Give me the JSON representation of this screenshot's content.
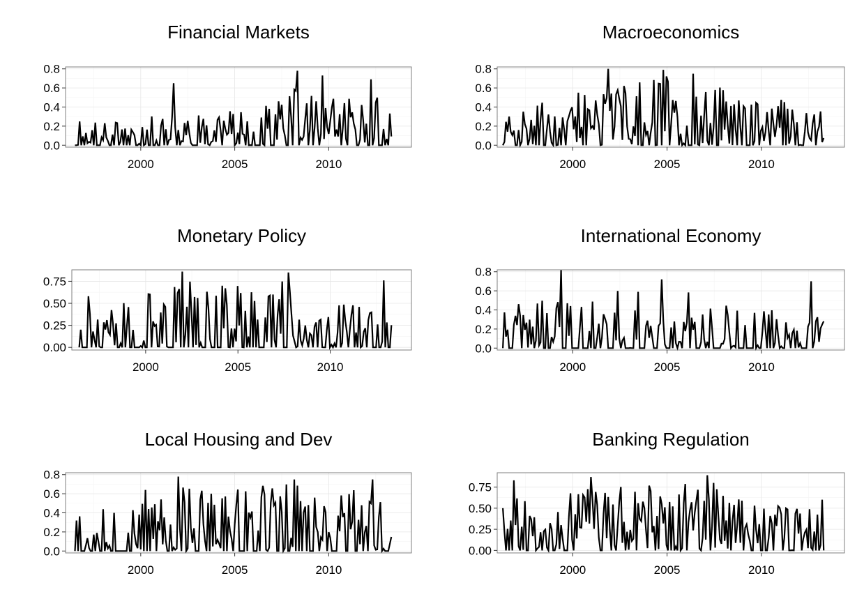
{
  "chart_data": [
    {
      "type": "line",
      "title": "Financial Markets",
      "xlabel": "",
      "ylabel": "",
      "xlim": [
        1996.0,
        2014.4
      ],
      "ylim": [
        -0.02,
        0.82
      ],
      "x_ticks": [
        2000,
        2005,
        2010
      ],
      "x_tick_labels": [
        "2000",
        "2005",
        "2010"
      ],
      "y_ticks": [
        0.0,
        0.2,
        0.4,
        0.6,
        0.8
      ],
      "y_tick_labels": [
        "0.0",
        "0.2",
        "0.4",
        "0.6",
        "0.8"
      ],
      "grid": true,
      "x_start": 1996.5,
      "x_end": 2013.3,
      "seed": 11,
      "p_zero": 0.35,
      "levels": [
        {
          "x": 1996.5,
          "v": 0.28
        },
        {
          "x": 2000.0,
          "v": 0.3
        },
        {
          "x": 2003.0,
          "v": 0.33
        },
        {
          "x": 2006.5,
          "v": 0.4
        },
        {
          "x": 2008.3,
          "v": 0.6
        },
        {
          "x": 2010.0,
          "v": 0.6
        },
        {
          "x": 2011.5,
          "v": 0.45
        },
        {
          "x": 2013.3,
          "v": 0.55
        }
      ],
      "series": [
        {
          "values": [
            {
              "x": 2001.75,
              "y": 0.65
            },
            {
              "x": 2008.3,
              "y": 0.78
            },
            {
              "x": 2009.7,
              "y": 0.73
            },
            {
              "x": 2012.25,
              "y": 0.69
            }
          ]
        }
      ]
    },
    {
      "type": "line",
      "title": "Macroeconomics",
      "xlabel": "",
      "ylabel": "",
      "xlim": [
        1996.0,
        2014.4
      ],
      "ylim": [
        -0.02,
        0.82
      ],
      "x_ticks": [
        2000,
        2005,
        2010
      ],
      "x_tick_labels": [
        "2000",
        "2005",
        "2010"
      ],
      "y_ticks": [
        0.0,
        0.2,
        0.4,
        0.6,
        0.8
      ],
      "y_tick_labels": [
        "0.0",
        "0.2",
        "0.4",
        "0.6",
        "0.8"
      ],
      "grid": true,
      "x_start": 1996.3,
      "x_end": 2013.3,
      "seed": 23,
      "p_zero": 0.25,
      "levels": [
        {
          "x": 1996.3,
          "v": 0.3
        },
        {
          "x": 1999.0,
          "v": 0.5
        },
        {
          "x": 2001.5,
          "v": 0.6
        },
        {
          "x": 2004.5,
          "v": 0.78
        },
        {
          "x": 2007.0,
          "v": 0.65
        },
        {
          "x": 2010.0,
          "v": 0.5
        },
        {
          "x": 2013.3,
          "v": 0.5
        }
      ],
      "series": [
        {
          "values": [
            {
              "x": 1996.6,
              "y": 0.3
            },
            {
              "x": 2001.9,
              "y": 0.8
            },
            {
              "x": 2004.8,
              "y": 0.79
            },
            {
              "x": 2006.4,
              "y": 0.75
            }
          ]
        }
      ]
    },
    {
      "type": "line",
      "title": "Monetary Policy",
      "xlabel": "",
      "ylabel": "",
      "xlim": [
        1996.0,
        2014.4
      ],
      "ylim": [
        -0.03,
        0.88
      ],
      "x_ticks": [
        2000,
        2005,
        2010
      ],
      "x_tick_labels": [
        "2000",
        "2005",
        "2010"
      ],
      "y_ticks": [
        0.0,
        0.25,
        0.5,
        0.75
      ],
      "y_tick_labels": [
        "0.00",
        "0.25",
        "0.50",
        "0.75"
      ],
      "grid": true,
      "x_start": 1996.4,
      "x_end": 2013.3,
      "seed": 37,
      "p_zero": 0.4,
      "levels": [
        {
          "x": 1996.4,
          "v": 0.55
        },
        {
          "x": 1999.0,
          "v": 0.55
        },
        {
          "x": 2002.0,
          "v": 0.75
        },
        {
          "x": 2005.0,
          "v": 0.75
        },
        {
          "x": 2008.0,
          "v": 0.8
        },
        {
          "x": 2009.0,
          "v": 0.45
        },
        {
          "x": 2013.3,
          "v": 0.55
        }
      ],
      "series": [
        {
          "values": [
            {
              "x": 1996.9,
              "y": 0.58
            },
            {
              "x": 2002.0,
              "y": 0.86
            },
            {
              "x": 2007.7,
              "y": 0.85
            },
            {
              "x": 2012.9,
              "y": 0.76
            }
          ]
        }
      ]
    },
    {
      "type": "line",
      "title": "International Economy",
      "xlabel": "",
      "ylabel": "",
      "xlim": [
        1996.0,
        2014.4
      ],
      "ylim": [
        -0.02,
        0.82
      ],
      "x_ticks": [
        2000,
        2005,
        2010
      ],
      "x_tick_labels": [
        "2000",
        "2005",
        "2010"
      ],
      "y_ticks": [
        0.0,
        0.2,
        0.4,
        0.6,
        0.8
      ],
      "y_tick_labels": [
        "0.0",
        "0.2",
        "0.4",
        "0.6",
        "0.8"
      ],
      "grid": true,
      "x_start": 1996.3,
      "x_end": 2013.3,
      "seed": 41,
      "p_zero": 0.4,
      "levels": [
        {
          "x": 1996.3,
          "v": 0.4
        },
        {
          "x": 1999.5,
          "v": 0.65
        },
        {
          "x": 2003.0,
          "v": 0.6
        },
        {
          "x": 2006.5,
          "v": 0.6
        },
        {
          "x": 2009.0,
          "v": 0.4
        },
        {
          "x": 2013.3,
          "v": 0.4
        }
      ],
      "series": [
        {
          "values": [
            {
              "x": 1996.5,
              "y": 0.12
            },
            {
              "x": 1999.4,
              "y": 0.82
            },
            {
              "x": 2004.7,
              "y": 0.72
            },
            {
              "x": 2012.6,
              "y": 0.7
            }
          ]
        }
      ]
    },
    {
      "type": "line",
      "title": "Local Housing and Dev",
      "xlabel": "",
      "ylabel": "",
      "xlim": [
        1996.0,
        2014.4
      ],
      "ylim": [
        -0.02,
        0.82
      ],
      "x_ticks": [
        2000,
        2005,
        2010
      ],
      "x_tick_labels": [
        "2000",
        "2005",
        "2010"
      ],
      "y_ticks": [
        0.0,
        0.2,
        0.4,
        0.6,
        0.8
      ],
      "y_tick_labels": [
        "0.0",
        "0.2",
        "0.4",
        "0.6",
        "0.8"
      ],
      "grid": true,
      "x_start": 1996.5,
      "x_end": 2013.3,
      "seed": 53,
      "p_zero": 0.35,
      "levels": [
        {
          "x": 1996.5,
          "v": 0.45
        },
        {
          "x": 1999.0,
          "v": 0.6
        },
        {
          "x": 2002.0,
          "v": 0.75
        },
        {
          "x": 2005.0,
          "v": 0.65
        },
        {
          "x": 2008.0,
          "v": 0.72
        },
        {
          "x": 2011.0,
          "v": 0.72
        },
        {
          "x": 2013.3,
          "v": 0.55
        }
      ],
      "series": [
        {
          "values": [
            {
              "x": 1996.6,
              "y": 0.32
            },
            {
              "x": 2002.0,
              "y": 0.78
            },
            {
              "x": 2008.2,
              "y": 0.75
            },
            {
              "x": 2012.3,
              "y": 0.75
            }
          ]
        }
      ]
    },
    {
      "type": "line",
      "title": "Banking Regulation",
      "xlabel": "",
      "ylabel": "",
      "xlim": [
        1996.0,
        2014.4
      ],
      "ylim": [
        -0.03,
        0.92
      ],
      "x_ticks": [
        2000,
        2005,
        2010
      ],
      "x_tick_labels": [
        "2000",
        "2005",
        "2010"
      ],
      "y_ticks": [
        0.0,
        0.25,
        0.5,
        0.75
      ],
      "y_tick_labels": [
        "0.00",
        "0.25",
        "0.50",
        "0.75"
      ],
      "grid": true,
      "x_start": 1996.3,
      "x_end": 2013.3,
      "seed": 67,
      "p_zero": 0.2,
      "levels": [
        {
          "x": 1996.3,
          "v": 0.6
        },
        {
          "x": 2000.0,
          "v": 0.75
        },
        {
          "x": 2003.0,
          "v": 0.8
        },
        {
          "x": 2007.5,
          "v": 0.8
        },
        {
          "x": 2009.0,
          "v": 0.6
        },
        {
          "x": 2013.3,
          "v": 0.5
        }
      ],
      "series": [
        {
          "values": [
            {
              "x": 1996.3,
              "y": 0.5
            },
            {
              "x": 1996.9,
              "y": 0.83
            },
            {
              "x": 2001.0,
              "y": 0.87
            },
            {
              "x": 2007.1,
              "y": 0.89
            },
            {
              "x": 2013.2,
              "y": 0.6
            }
          ]
        }
      ]
    }
  ]
}
